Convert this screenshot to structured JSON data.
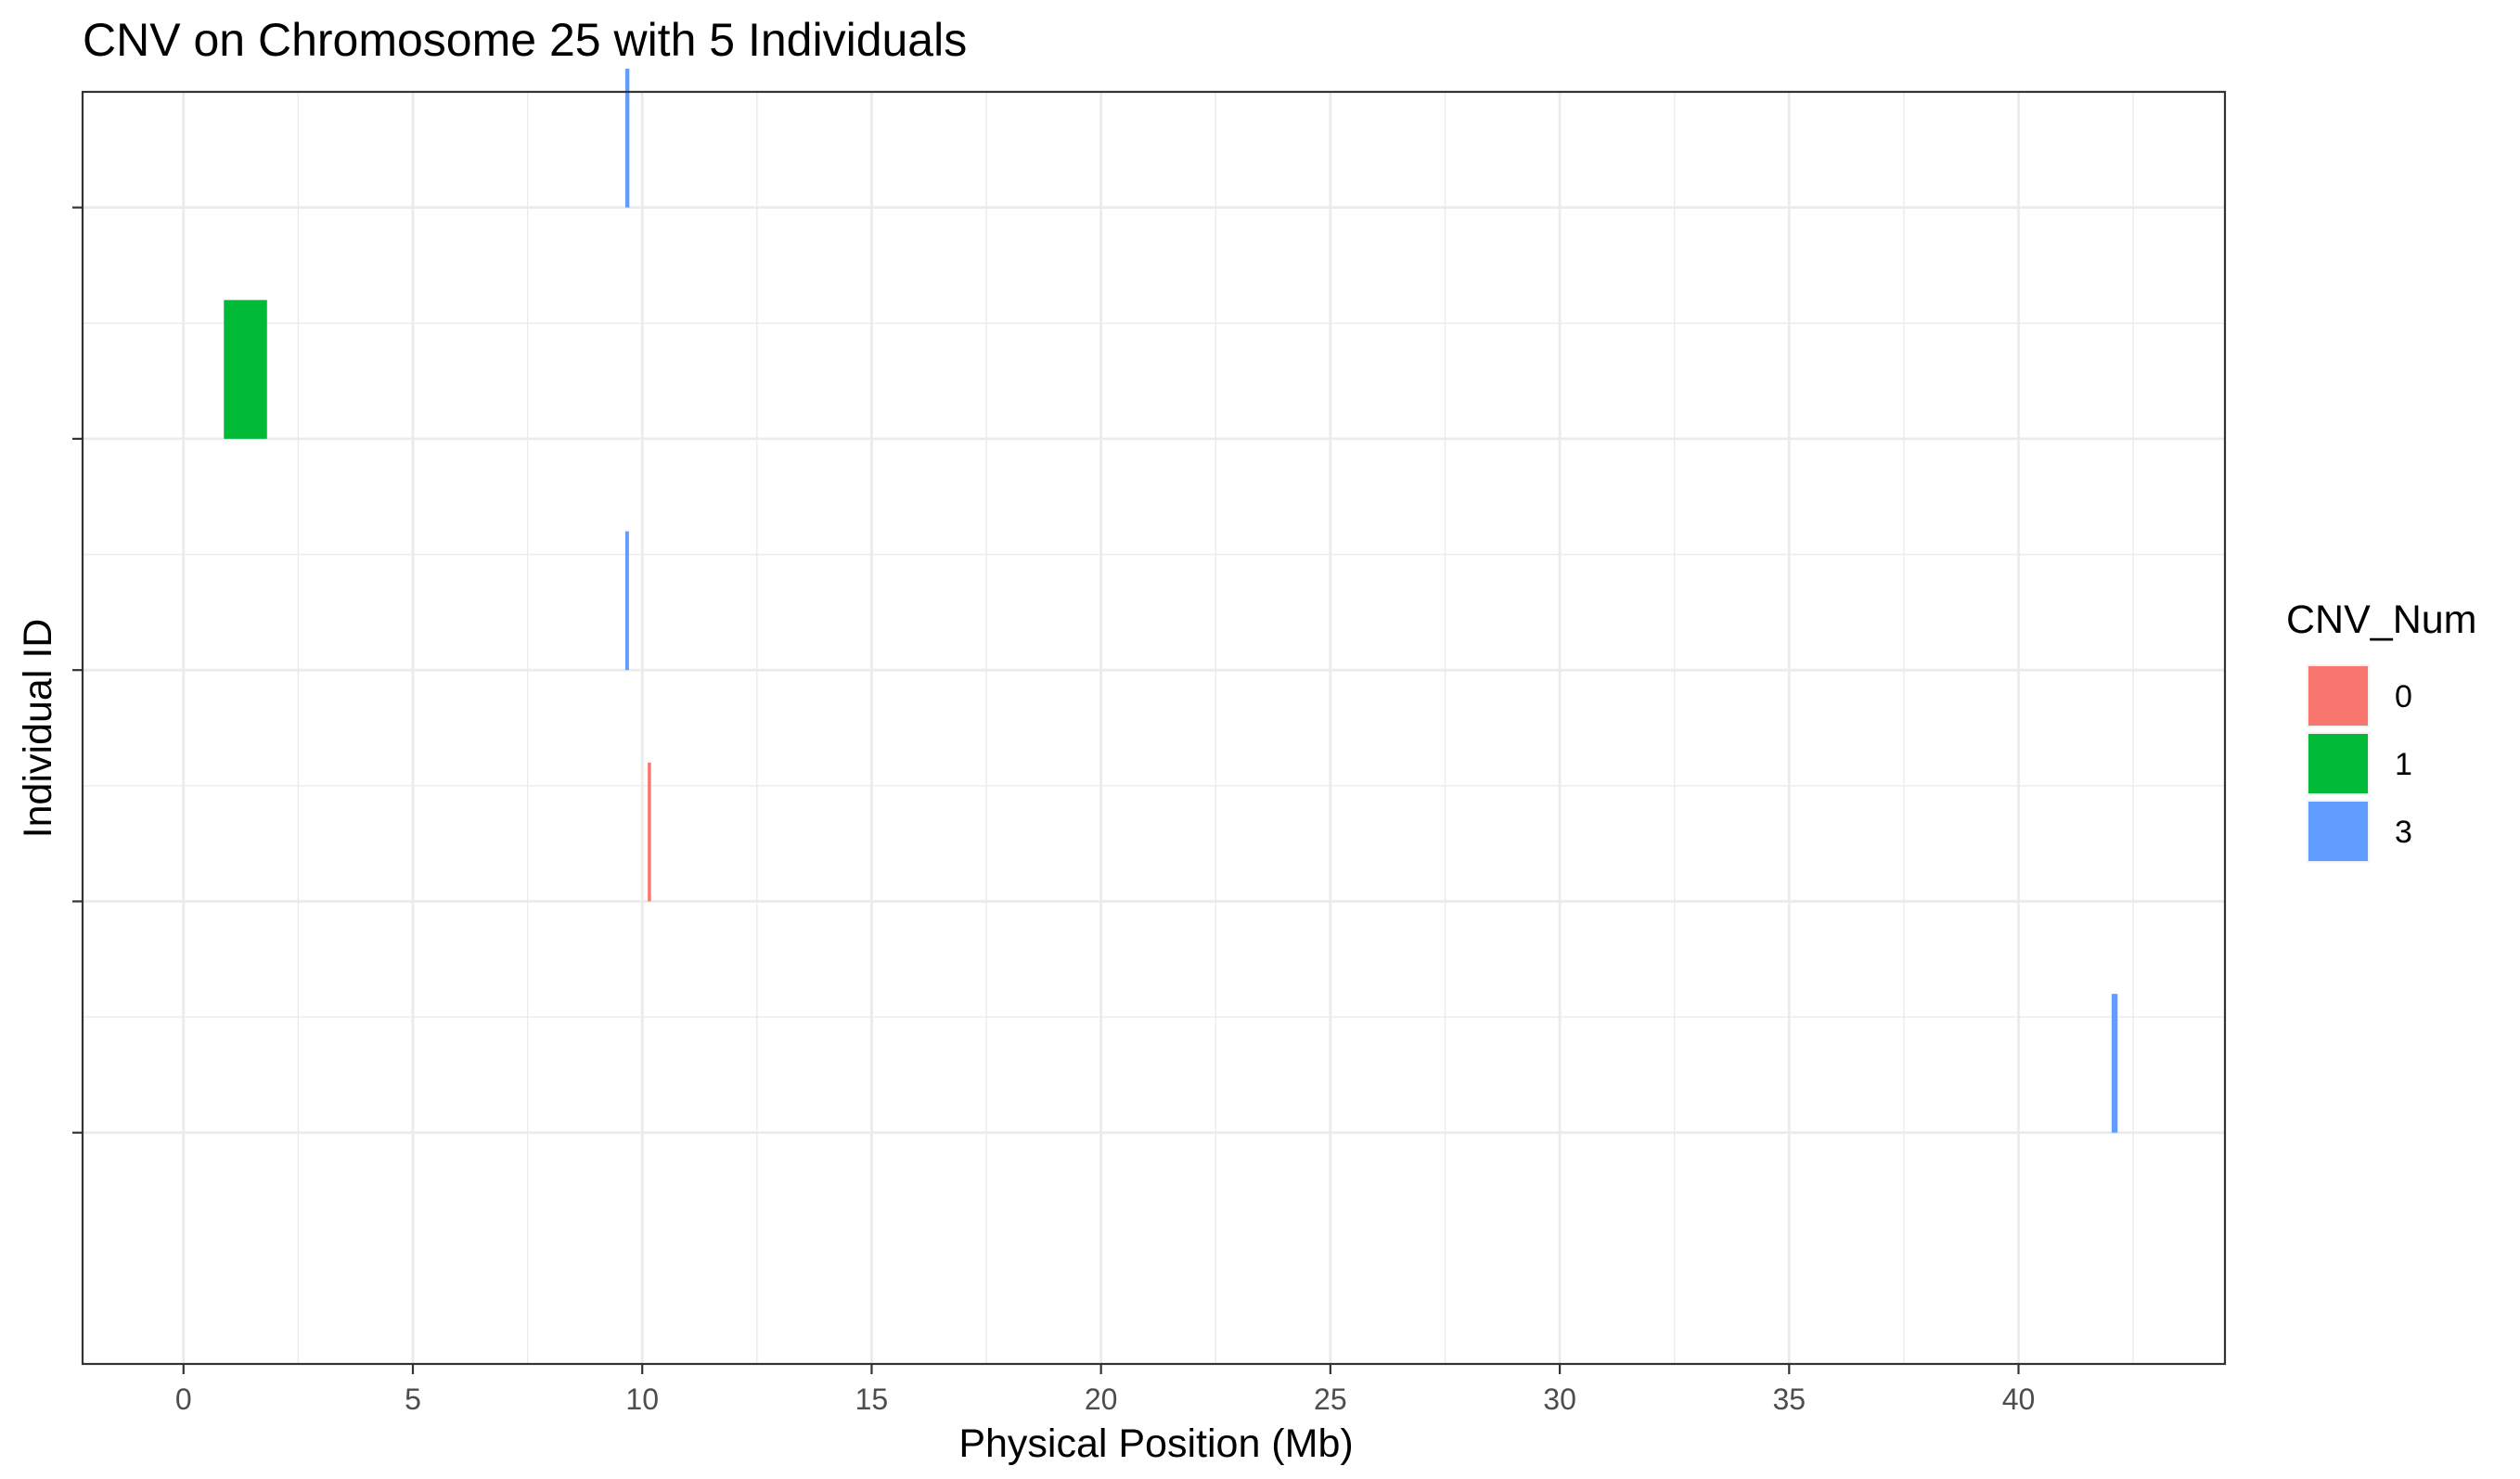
{
  "chart_data": {
    "type": "bar",
    "orientation": "horizontal-segments",
    "title": "CNV on Chromosome 25 with 5 Individuals",
    "xlabel": "Physical Position (Mb)",
    "ylabel": "Individual ID",
    "xlim": [
      -2.2,
      44.5
    ],
    "x_ticks": [
      0,
      5,
      10,
      15,
      20,
      25,
      30,
      35,
      40
    ],
    "x_tick_labels": [
      "0",
      "5",
      "10",
      "15",
      "20",
      "25",
      "30",
      "35",
      "40"
    ],
    "individuals": 5,
    "grid": true,
    "legend": {
      "title": "CNV_Num",
      "position": "right",
      "entries": [
        {
          "label": "0",
          "color": "#F8766D"
        },
        {
          "label": "1",
          "color": "#00BA38"
        },
        {
          "label": "3",
          "color": "#619CFF"
        }
      ]
    },
    "segments": [
      {
        "row": 1,
        "start": 9.63,
        "end": 9.72,
        "cnv": "3"
      },
      {
        "row": 2,
        "start": 0.88,
        "end": 1.82,
        "cnv": "1"
      },
      {
        "row": 3,
        "start": 9.63,
        "end": 9.71,
        "cnv": "3"
      },
      {
        "row": 4,
        "start": 10.12,
        "end": 10.19,
        "cnv": "0"
      },
      {
        "row": 5,
        "start": 42.03,
        "end": 42.16,
        "cnv": "3"
      }
    ]
  }
}
